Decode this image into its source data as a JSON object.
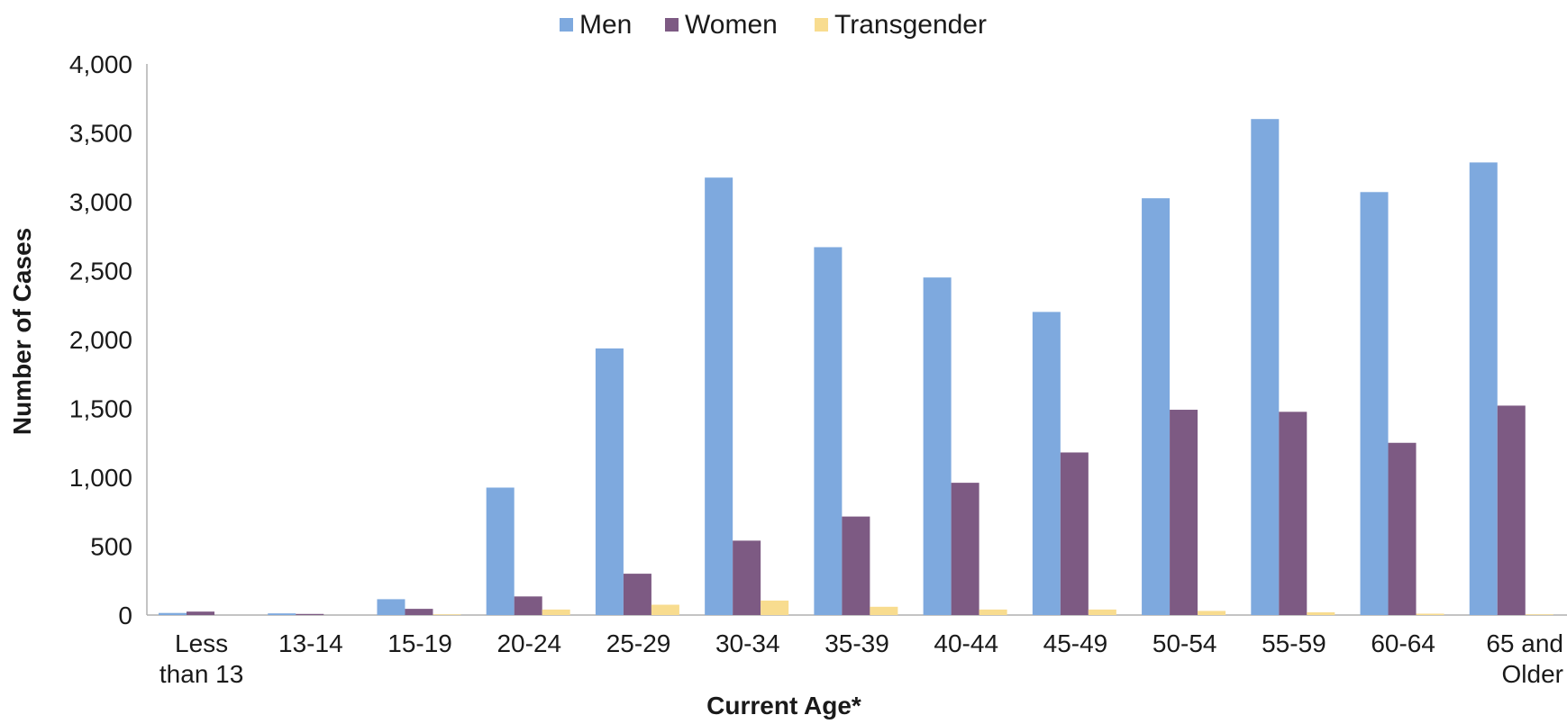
{
  "chart_data": {
    "type": "bar",
    "title": "",
    "xlabel": "Current Age*",
    "ylabel": "Number of Cases",
    "ylim": [
      0,
      4000
    ],
    "yticks": [
      0,
      500,
      1000,
      1500,
      2000,
      2500,
      3000,
      3500,
      4000
    ],
    "ytick_labels": [
      "0",
      "500",
      "1,000",
      "1,500",
      "2,000",
      "2,500",
      "3,000",
      "3,500",
      "4,000"
    ],
    "categories": [
      "Less than 13",
      "13-14",
      "15-19",
      "20-24",
      "25-29",
      "30-34",
      "35-39",
      "40-44",
      "45-49",
      "50-54",
      "55-59",
      "60-64",
      "65 and Older"
    ],
    "category_lines": [
      [
        "Less",
        "than 13"
      ],
      [
        "13-14"
      ],
      [
        "15-19"
      ],
      [
        "20-24"
      ],
      [
        "25-29"
      ],
      [
        "30-34"
      ],
      [
        "35-39"
      ],
      [
        "40-44"
      ],
      [
        "45-49"
      ],
      [
        "50-54"
      ],
      [
        "55-59"
      ],
      [
        "60-64"
      ],
      [
        "65 and",
        "Older"
      ]
    ],
    "series": [
      {
        "name": "Men",
        "color": "#7EA9DE",
        "values": [
          15,
          12,
          115,
          925,
          1935,
          3175,
          2670,
          2450,
          2200,
          3025,
          3600,
          3070,
          3285
        ]
      },
      {
        "name": "Women",
        "color": "#7D5A83",
        "values": [
          25,
          8,
          45,
          135,
          300,
          540,
          715,
          960,
          1180,
          1490,
          1475,
          1250,
          1520
        ]
      },
      {
        "name": "Transgender",
        "color": "#F8DC8F",
        "values": [
          0,
          0,
          5,
          40,
          75,
          105,
          60,
          40,
          40,
          30,
          20,
          10,
          5
        ]
      }
    ],
    "legend_position": "top",
    "grid": false
  }
}
